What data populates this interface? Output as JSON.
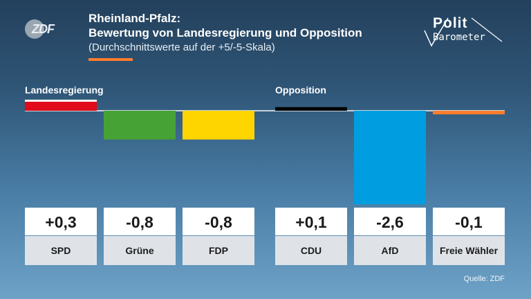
{
  "branding": {
    "zdf_logo_text": "ZDF",
    "polit_line1": "Polit",
    "polit_line2": "Barometer"
  },
  "title": "Rheinland-Pfalz:",
  "title_line2": "Bewertung von Landesregierung und Opposition",
  "subtitle": "(Durchschnittswerte auf der +5/-5-Skala)",
  "groups": [
    {
      "label": "Landesregierung",
      "color": "#e10a1a"
    },
    {
      "label": "Opposition",
      "color": "#000000"
    }
  ],
  "source": "Quelle: ZDF",
  "chart_data": {
    "type": "bar",
    "categories": [
      "SPD",
      "Grüne",
      "FDP",
      "CDU",
      "AfD",
      "Freie Wähler"
    ],
    "values": [
      0.3,
      -0.8,
      -0.8,
      0.1,
      -2.6,
      -0.1
    ],
    "value_labels": [
      "+0,3",
      "-0,8",
      "-0,8",
      "+0,1",
      "-2,6",
      "-0,1"
    ],
    "colors": [
      "#e10a1a",
      "#46a235",
      "#ffd500",
      "#000000",
      "#009ee0",
      "#ff7d2d"
    ],
    "group_of_category": [
      0,
      0,
      0,
      1,
      1,
      1
    ],
    "title": "Bewertung von Landesregierung und Opposition",
    "xlabel": "",
    "ylabel": "",
    "ylim": [
      -5,
      5
    ],
    "grid": false,
    "legend": "none"
  },
  "colors": {
    "baseline": "#c9d3dc",
    "value_box_bg": "#ffffff",
    "value_text": "#1a1a1a",
    "label_box_bg": "#dfe3e8",
    "label_text": "#1a1a1a",
    "accent": "#ff7d2d"
  }
}
